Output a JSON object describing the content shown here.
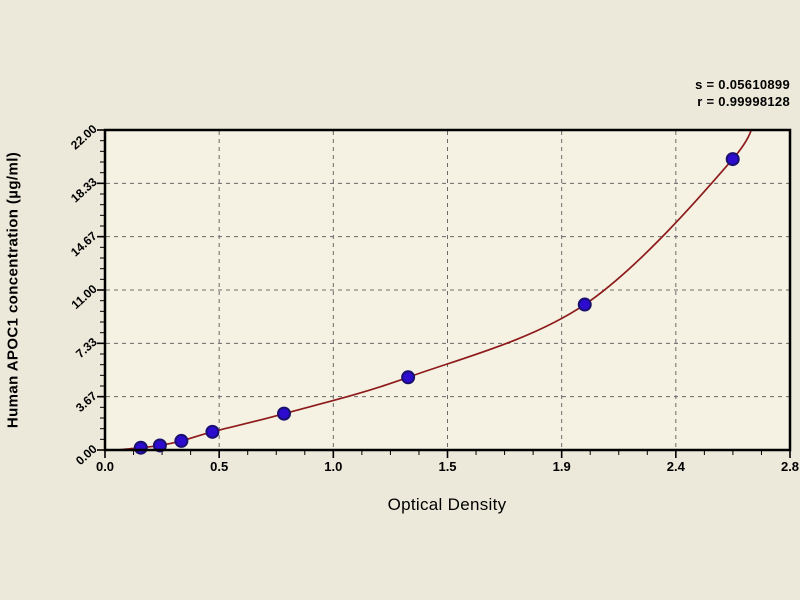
{
  "page": {
    "background": "#ece9da"
  },
  "chart_data": {
    "type": "scatter",
    "title": "",
    "xlabel": "Optical Density",
    "ylabel": "Human APOC1 concentration (µg/ml)",
    "x_tick_labels": [
      "0.0",
      "0.5",
      "1.0",
      "1.5",
      "1.9",
      "2.4",
      "2.8"
    ],
    "y_tick_labels": [
      "0.00",
      "3.67",
      "7.33",
      "11.00",
      "14.67",
      "18.33",
      "22.00"
    ],
    "xlim": [
      0,
      2.87
    ],
    "ylim": [
      0,
      22
    ],
    "grid": "dashed",
    "legend": "none",
    "series": [
      {
        "name": "standard-points",
        "type": "scatter",
        "points": [
          [
            0.15,
            0.156
          ],
          [
            0.23,
            0.313
          ],
          [
            0.32,
            0.625
          ],
          [
            0.45,
            1.25
          ],
          [
            0.75,
            2.5
          ],
          [
            1.27,
            5.0
          ],
          [
            2.01,
            10.0
          ],
          [
            2.63,
            20.0
          ]
        ]
      },
      {
        "name": "fitted-curve",
        "type": "line",
        "curve_start": [
          0.05,
          0.0
        ],
        "curve_end": [
          2.72,
          23.5
        ]
      }
    ],
    "annotations": {
      "s_line": "s = 0.05610899",
      "r_line": "r = 0.99998128"
    },
    "colors": {
      "curve": "#8e1b1b",
      "point_fill": "#2d0ccf",
      "point_edge": "#191070",
      "background": "#ece9da",
      "plot_background": "#f5f2e4",
      "grid": "#6a6a6a",
      "frame": "#000000",
      "text": "#000000"
    }
  }
}
